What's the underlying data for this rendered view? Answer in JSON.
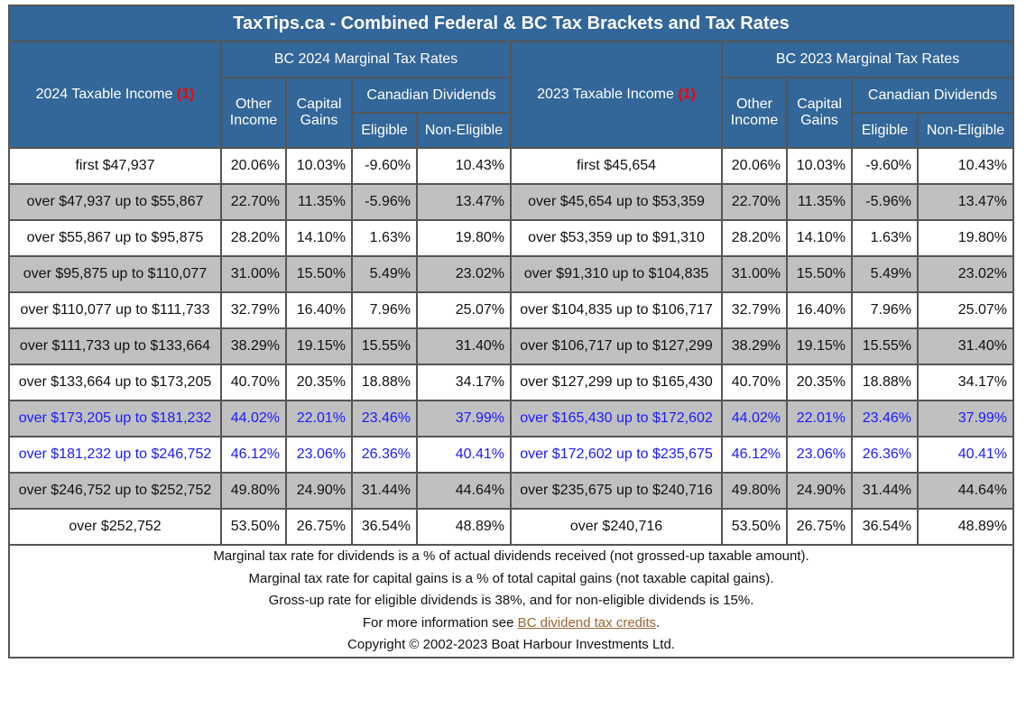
{
  "title": "TaxTips.ca - Combined Federal & BC Tax Brackets and Tax Rates",
  "header": {
    "left": {
      "income_label": "2024 Taxable Income",
      "note_ref": "(1)",
      "group_label": "BC 2024 Marginal Tax Rates"
    },
    "right": {
      "income_label": "2023 Taxable Income",
      "note_ref": "(1)",
      "group_label": "BC 2023 Marginal Tax Rates"
    },
    "other_income_1": "Other",
    "other_income_2": "Income",
    "capital_gains_1": "Capital",
    "capital_gains_2": "Gains",
    "dividends": "Canadian Dividends",
    "eligible": "Eligible",
    "non_eligible": "Non-Eligible"
  },
  "rows": [
    {
      "style": "white",
      "income_2024": "first $47,937",
      "r2024": [
        "20.06%",
        "10.03%",
        "-9.60%",
        "10.43%"
      ],
      "income_2023": "first $45,654",
      "r2023": [
        "20.06%",
        "10.03%",
        "-9.60%",
        "10.43%"
      ]
    },
    {
      "style": "gray",
      "income_2024": "over $47,937 up to $55,867",
      "r2024": [
        "22.70%",
        "11.35%",
        "-5.96%",
        "13.47%"
      ],
      "income_2023": "over $45,654 up to $53,359",
      "r2023": [
        "22.70%",
        "11.35%",
        "-5.96%",
        "13.47%"
      ]
    },
    {
      "style": "white",
      "income_2024": "over $55,867 up to $95,875",
      "r2024": [
        "28.20%",
        "14.10%",
        "1.63%",
        "19.80%"
      ],
      "income_2023": "over $53,359 up to $91,310",
      "r2023": [
        "28.20%",
        "14.10%",
        "1.63%",
        "19.80%"
      ]
    },
    {
      "style": "gray",
      "income_2024": "over $95,875 up to $110,077",
      "r2024": [
        "31.00%",
        "15.50%",
        "5.49%",
        "23.02%"
      ],
      "income_2023": "over $91,310 up to $104,835",
      "r2023": [
        "31.00%",
        "15.50%",
        "5.49%",
        "23.02%"
      ]
    },
    {
      "style": "white",
      "income_2024": "over $110,077 up to $111,733",
      "r2024": [
        "32.79%",
        "16.40%",
        "7.96%",
        "25.07%"
      ],
      "income_2023": "over $104,835 up to $106,717",
      "r2023": [
        "32.79%",
        "16.40%",
        "7.96%",
        "25.07%"
      ]
    },
    {
      "style": "gray",
      "income_2024": "over $111,733 up to $133,664",
      "r2024": [
        "38.29%",
        "19.15%",
        "15.55%",
        "31.40%"
      ],
      "income_2023": "over $106,717 up to $127,299",
      "r2023": [
        "38.29%",
        "19.15%",
        "15.55%",
        "31.40%"
      ]
    },
    {
      "style": "white",
      "income_2024": "over $133,664 up to $173,205",
      "r2024": [
        "40.70%",
        "20.35%",
        "18.88%",
        "34.17%"
      ],
      "income_2023": "over $127,299 up to $165,430",
      "r2023": [
        "40.70%",
        "20.35%",
        "18.88%",
        "34.17%"
      ]
    },
    {
      "style": "gray blue",
      "income_2024": "over $173,205 up to $181,232",
      "r2024": [
        "44.02%",
        "22.01%",
        "23.46%",
        "37.99%"
      ],
      "income_2023": "over $165,430 up to $172,602",
      "r2023": [
        "44.02%",
        "22.01%",
        "23.46%",
        "37.99%"
      ]
    },
    {
      "style": "white blue",
      "income_2024": "over $181,232 up to $246,752",
      "r2024": [
        "46.12%",
        "23.06%",
        "26.36%",
        "40.41%"
      ],
      "income_2023": "over $172,602 up to $235,675",
      "r2023": [
        "46.12%",
        "23.06%",
        "26.36%",
        "40.41%"
      ]
    },
    {
      "style": "gray",
      "income_2024": "over $246,752 up to $252,752",
      "r2024": [
        "49.80%",
        "24.90%",
        "31.44%",
        "44.64%"
      ],
      "income_2023": "over $235,675 up to $240,716",
      "r2023": [
        "49.80%",
        "24.90%",
        "31.44%",
        "44.64%"
      ]
    },
    {
      "style": "white",
      "income_2024": "over $252,752",
      "r2024": [
        "53.50%",
        "26.75%",
        "36.54%",
        "48.89%"
      ],
      "income_2023": "over $240,716",
      "r2023": [
        "53.50%",
        "26.75%",
        "36.54%",
        "48.89%"
      ]
    }
  ],
  "footer": {
    "note1": "Marginal tax rate for dividends is a % of actual dividends received (not grossed-up taxable amount).",
    "note2": "Marginal tax rate for capital gains is a % of total capital gains (not taxable capital gains).",
    "note3": "Gross-up rate for eligible dividends is 38%, and for non-eligible dividends is 15%.",
    "more_info_prefix": "For more information see ",
    "more_info_link": "BC dividend tax credits",
    "more_info_suffix": ".",
    "copyright": "Copyright © 2002-2023 Boat Harbour Investments Ltd."
  },
  "colors": {
    "header_bg": "#336699",
    "gray_row": "#c0c0c0",
    "highlight_text": "#1a1aff",
    "note_ref": "#ff0000",
    "link": "#996633"
  }
}
